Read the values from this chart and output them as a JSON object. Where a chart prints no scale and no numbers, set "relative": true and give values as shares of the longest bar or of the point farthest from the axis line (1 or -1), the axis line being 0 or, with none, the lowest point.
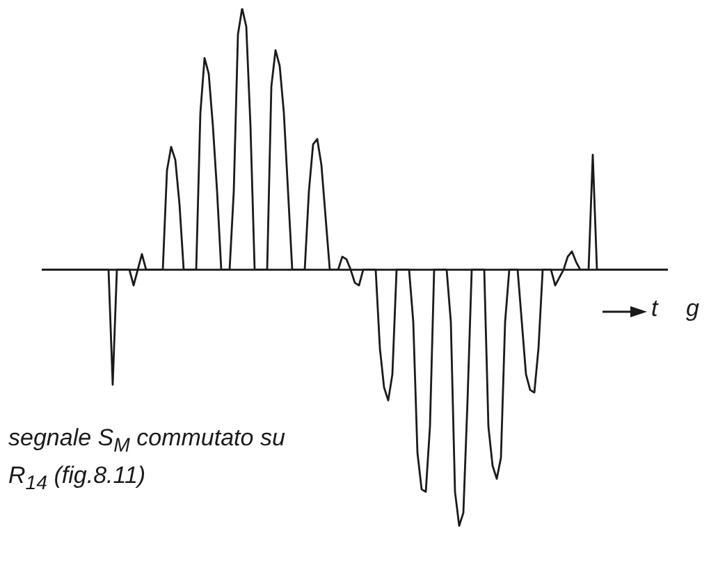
{
  "chart_data": {
    "type": "line",
    "relative": true,
    "xlabel": "t",
    "annotations": [
      "g",
      "segnale S$_{M}$ commutato su R$_{14}$ (fig.8.11)"
    ],
    "legend": false,
    "marker": "none",
    "line_style": "solid",
    "grid": false,
    "categories": [
      null,
      null,
      null,
      null,
      null,
      null,
      null,
      null,
      null,
      null,
      null,
      null,
      null,
      null,
      null,
      null,
      null,
      null,
      null,
      null,
      null,
      null,
      null,
      null,
      null,
      null,
      null,
      null,
      null,
      null,
      null,
      null,
      null,
      null,
      null,
      null,
      null,
      null,
      null,
      null,
      null,
      null,
      null,
      null,
      null,
      null,
      null,
      null,
      null,
      null,
      null,
      null,
      null,
      null,
      null,
      null,
      null,
      null,
      null,
      null,
      null,
      null,
      null,
      null,
      null,
      null,
      null,
      null,
      null,
      null,
      null,
      null,
      null,
      null,
      null,
      null,
      null,
      null,
      null,
      null,
      null,
      null,
      null,
      null,
      null,
      null,
      null,
      null,
      null,
      null,
      null,
      null,
      null,
      null,
      null,
      null,
      null,
      null,
      null,
      null,
      null,
      null,
      null,
      null,
      null,
      null,
      null,
      null,
      null,
      null,
      null,
      null,
      null,
      null,
      null,
      null,
      null,
      null,
      null,
      null,
      null,
      null,
      null,
      null,
      null,
      null,
      null,
      null,
      null,
      null,
      null,
      null,
      null,
      null,
      null,
      null,
      null,
      null,
      null,
      null,
      null,
      null,
      null,
      null,
      null,
      null,
      null,
      null,
      null,
      null,
      null
    ],
    "series": [
      {
        "color": "#1a1a1a",
        "values": [
          0,
          0,
          0,
          0,
          0,
          0,
          0,
          0,
          0,
          0,
          0,
          0,
          0,
          0,
          0,
          0,
          0,
          -0.44,
          0,
          0,
          0,
          0,
          -0.06,
          0,
          0.06,
          0,
          0,
          0,
          0,
          0,
          0.38,
          0.47,
          0.42,
          0.25,
          0,
          0,
          0,
          0,
          0.6,
          0.81,
          0.75,
          0.55,
          0.3,
          0,
          0,
          0,
          0.3,
          0.9,
          1,
          0.93,
          0.55,
          0,
          0,
          0,
          0,
          0.7,
          0.84,
          0.78,
          0.6,
          0.3,
          0,
          0,
          0,
          0,
          0.3,
          0.48,
          0.5,
          0.4,
          0.2,
          0,
          0,
          0,
          0.05,
          0.04,
          0,
          -0.05,
          -0.06,
          0,
          0,
          0,
          0,
          -0.3,
          -0.45,
          -0.5,
          -0.4,
          0,
          0,
          0,
          0,
          -0.2,
          -0.7,
          -0.84,
          -0.85,
          -0.6,
          0,
          0,
          0,
          0,
          -0.2,
          -0.85,
          -0.98,
          -0.93,
          -0.5,
          0,
          0,
          0,
          0,
          -0.6,
          -0.75,
          -0.8,
          -0.72,
          -0.2,
          0,
          0,
          0,
          -0.2,
          -0.4,
          -0.46,
          -0.47,
          -0.3,
          0,
          0,
          0,
          -0.06,
          -0.03,
          0,
          0.05,
          0.07,
          0.03,
          0,
          0,
          0,
          0.44,
          0,
          0,
          0,
          0,
          0,
          0,
          0,
          0,
          0,
          0,
          0,
          0,
          0,
          0,
          0,
          0,
          0,
          0
        ]
      }
    ]
  }
}
